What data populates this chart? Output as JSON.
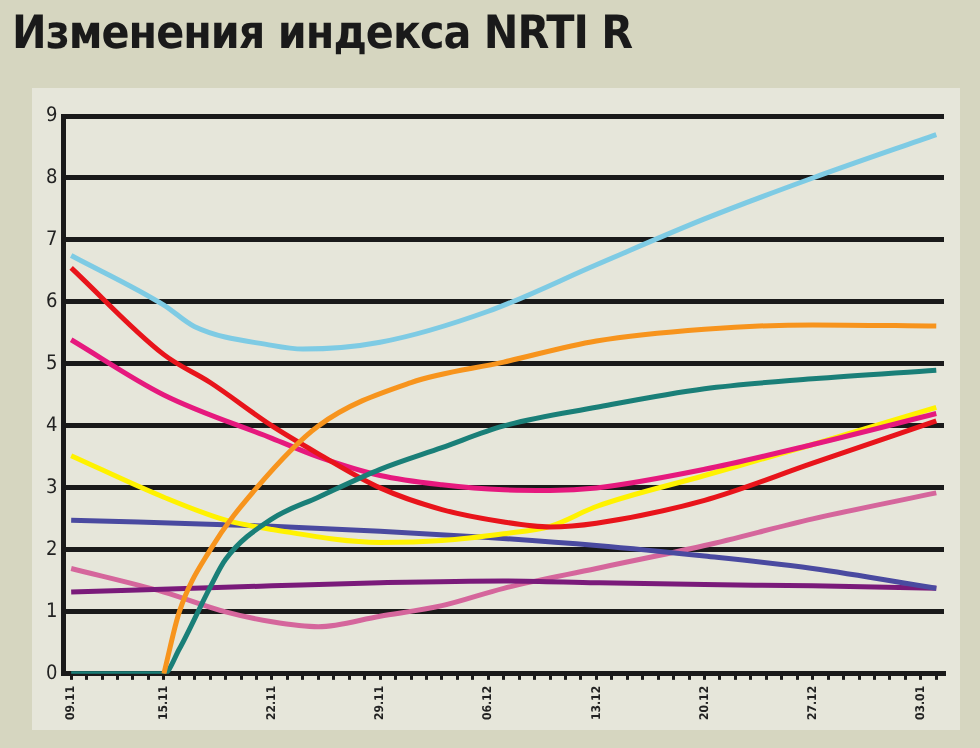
{
  "chart_data": {
    "type": "line",
    "title": "Изменения индекса NRTI R",
    "categories": [
      "09.11",
      null,
      null,
      null,
      null,
      null,
      "15.11",
      null,
      null,
      null,
      null,
      null,
      null,
      "22.11",
      null,
      null,
      null,
      null,
      null,
      null,
      "29.11",
      null,
      null,
      null,
      null,
      null,
      null,
      "06.12",
      null,
      null,
      null,
      null,
      null,
      null,
      "13.12",
      null,
      null,
      null,
      null,
      null,
      null,
      "20.12",
      null,
      null,
      null,
      null,
      null,
      null,
      "27.12",
      null,
      null,
      null,
      null,
      null,
      null,
      "03.01",
      null
    ],
    "ylim": [
      0,
      9
    ],
    "yticks": [
      0,
      1,
      2,
      3,
      4,
      5,
      6,
      7,
      8,
      9
    ],
    "grid": "y",
    "legend": false,
    "marker": "none",
    "line_style": "solid",
    "series": [
      {
        "color": "#7ecbe4",
        "values": [
          6.75,
          null,
          null,
          null,
          null,
          null,
          5.95,
          null,
          5.6,
          null,
          null,
          null,
          null,
          5.3,
          null,
          5.24,
          null,
          null,
          null,
          null,
          5.35,
          null,
          null,
          null,
          null,
          null,
          null,
          5.85,
          null,
          null,
          null,
          null,
          null,
          null,
          6.6,
          null,
          null,
          null,
          null,
          null,
          null,
          7.34,
          null,
          null,
          null,
          null,
          null,
          null,
          8.0,
          null,
          null,
          null,
          null,
          null,
          null,
          null,
          8.7
        ]
      },
      {
        "color": "#f7941d",
        "values": [
          null,
          null,
          null,
          null,
          null,
          null,
          0,
          1,
          null,
          2,
          null,
          null,
          3,
          null,
          null,
          null,
          4,
          null,
          null,
          null,
          null,
          null,
          4.7,
          null,
          null,
          null,
          null,
          null,
          5.03,
          null,
          null,
          null,
          null,
          null,
          5.37,
          null,
          null,
          null,
          null,
          null,
          null,
          5.56,
          null,
          null,
          null,
          null,
          null,
          null,
          5.63,
          null,
          null,
          null,
          null,
          null,
          null,
          null,
          5.61
        ]
      },
      {
        "color": "#1a7f78",
        "values": [
          0,
          null,
          null,
          null,
          null,
          null,
          0,
          0.4,
          null,
          1.4,
          1.85,
          null,
          null,
          2.5,
          null,
          null,
          2.85,
          null,
          null,
          null,
          3.3,
          null,
          null,
          null,
          3.65,
          null,
          null,
          null,
          4.0,
          null,
          null,
          null,
          null,
          null,
          4.3,
          null,
          null,
          null,
          null,
          null,
          null,
          4.6,
          null,
          null,
          null,
          null,
          null,
          null,
          4.76,
          null,
          null,
          null,
          null,
          null,
          null,
          null,
          4.9
        ]
      },
      {
        "color": "#e8141b",
        "values": [
          6.55,
          null,
          null,
          null,
          null,
          null,
          5.15,
          null,
          null,
          4.7,
          null,
          null,
          null,
          4.0,
          null,
          null,
          3.55,
          null,
          null,
          null,
          3.0,
          null,
          null,
          null,
          2.65,
          null,
          null,
          null,
          2.45,
          null,
          null,
          2.37,
          null,
          null,
          2.43,
          null,
          null,
          null,
          null,
          null,
          null,
          2.8,
          null,
          null,
          null,
          null,
          null,
          null,
          3.4,
          null,
          null,
          null,
          null,
          null,
          null,
          null,
          4.08
        ]
      },
      {
        "color": "#e6197e",
        "values": [
          5.39,
          null,
          null,
          null,
          null,
          null,
          4.5,
          null,
          null,
          null,
          null,
          null,
          null,
          3.8,
          null,
          null,
          3.5,
          null,
          null,
          null,
          3.2,
          null,
          null,
          null,
          3.05,
          null,
          null,
          null,
          2.97,
          null,
          null,
          2.96,
          null,
          null,
          3.0,
          null,
          null,
          null,
          null,
          null,
          null,
          3.3,
          null,
          null,
          null,
          null,
          null,
          null,
          3.7,
          null,
          null,
          null,
          null,
          null,
          null,
          null,
          4.2
        ]
      },
      {
        "color": "#fff200",
        "values": [
          3.52,
          null,
          null,
          null,
          null,
          null,
          2.85,
          null,
          null,
          null,
          2.48,
          null,
          null,
          2.33,
          null,
          null,
          null,
          null,
          null,
          null,
          2.12,
          null,
          null,
          null,
          2.15,
          null,
          null,
          null,
          2.26,
          null,
          null,
          2.38,
          null,
          null,
          2.7,
          null,
          null,
          null,
          null,
          null,
          null,
          3.2,
          null,
          null,
          null,
          null,
          null,
          null,
          3.7,
          null,
          null,
          null,
          null,
          null,
          null,
          null,
          4.3
        ]
      },
      {
        "color": "#4a4aa0",
        "values": [
          2.48,
          null,
          null,
          null,
          null,
          null,
          null,
          null,
          null,
          null,
          null,
          null,
          null,
          2.38,
          null,
          null,
          null,
          null,
          null,
          null,
          2.3,
          null,
          null,
          null,
          null,
          null,
          null,
          2.2,
          null,
          null,
          null,
          null,
          null,
          null,
          2.07,
          null,
          null,
          null,
          null,
          null,
          null,
          1.9,
          null,
          null,
          null,
          null,
          null,
          null,
          1.7,
          null,
          null,
          null,
          null,
          null,
          null,
          null,
          1.38
        ]
      },
      {
        "color": "#7a1a7a",
        "values": [
          1.32,
          null,
          null,
          null,
          null,
          null,
          null,
          null,
          null,
          null,
          null,
          null,
          null,
          1.42,
          null,
          null,
          null,
          null,
          null,
          null,
          1.47,
          null,
          null,
          null,
          null,
          null,
          null,
          null,
          1.5,
          null,
          null,
          null,
          null,
          null,
          1.47,
          null,
          null,
          null,
          null,
          null,
          null,
          1.44,
          null,
          null,
          null,
          null,
          null,
          null,
          1.42,
          null,
          null,
          null,
          null,
          null,
          null,
          null,
          1.38
        ]
      },
      {
        "color": "#d5669c",
        "values": [
          1.7,
          null,
          null,
          null,
          null,
          null,
          1.32,
          null,
          null,
          null,
          1.0,
          null,
          null,
          0.84,
          null,
          null,
          0.76,
          null,
          null,
          null,
          0.93,
          null,
          null,
          null,
          1.1,
          null,
          null,
          null,
          1.38,
          null,
          null,
          null,
          null,
          null,
          1.7,
          null,
          null,
          null,
          null,
          null,
          null,
          2.07,
          null,
          null,
          null,
          null,
          null,
          null,
          2.5,
          null,
          null,
          null,
          null,
          null,
          null,
          null,
          2.92
        ]
      }
    ]
  }
}
